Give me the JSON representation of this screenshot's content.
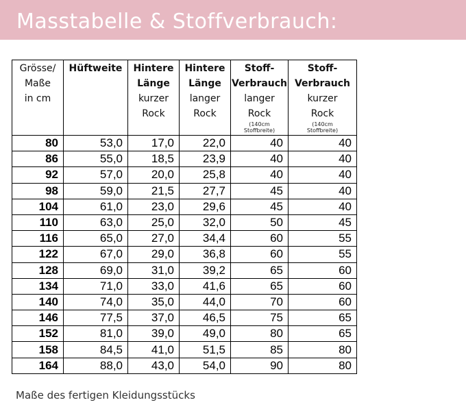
{
  "header": {
    "title": "Masstabelle & Stoffverbrauch:"
  },
  "table": {
    "columns": [
      {
        "lines": [
          {
            "text": "Grösse/",
            "bold": false
          },
          {
            "text": "Maße",
            "bold": false
          },
          {
            "text": "in cm",
            "bold": false
          }
        ]
      },
      {
        "lines": [
          {
            "text": "Hüftweite",
            "bold": true
          }
        ]
      },
      {
        "lines": [
          {
            "text": "Hintere",
            "bold": true
          },
          {
            "text": "Länge",
            "bold": true
          },
          {
            "text": "kurzer",
            "bold": false
          },
          {
            "text": "Rock",
            "bold": false
          }
        ]
      },
      {
        "lines": [
          {
            "text": "Hintere",
            "bold": true
          },
          {
            "text": "Länge",
            "bold": true
          },
          {
            "text": "langer",
            "bold": false
          },
          {
            "text": "Rock",
            "bold": false
          }
        ]
      },
      {
        "lines": [
          {
            "text": "Stoff-",
            "bold": true
          },
          {
            "text": "Verbrauch",
            "bold": true
          },
          {
            "text": "langer",
            "bold": false
          },
          {
            "text": "Rock",
            "bold": false
          }
        ],
        "notes": [
          "(140cm",
          "Stoffbreite)"
        ]
      },
      {
        "lines": [
          {
            "text": "Stoff-",
            "bold": true
          },
          {
            "text": "Verbrauch",
            "bold": true
          },
          {
            "text": "kurzer",
            "bold": false
          },
          {
            "text": "Rock",
            "bold": false
          }
        ],
        "notes": [
          "(140cm",
          "Stoffbreite)"
        ]
      }
    ],
    "rows": [
      [
        "80",
        "53,0",
        "17,0",
        "22,0",
        "40",
        "40"
      ],
      [
        "86",
        "55,0",
        "18,5",
        "23,9",
        "40",
        "40"
      ],
      [
        "92",
        "57,0",
        "20,0",
        "25,8",
        "40",
        "40"
      ],
      [
        "98",
        "59,0",
        "21,5",
        "27,7",
        "45",
        "40"
      ],
      [
        "104",
        "61,0",
        "23,0",
        "29,6",
        "45",
        "40"
      ],
      [
        "110",
        "63,0",
        "25,0",
        "32,0",
        "50",
        "45"
      ],
      [
        "116",
        "65,0",
        "27,0",
        "34,4",
        "60",
        "55"
      ],
      [
        "122",
        "67,0",
        "29,0",
        "36,8",
        "60",
        "55"
      ],
      [
        "128",
        "69,0",
        "31,0",
        "39,2",
        "65",
        "60"
      ],
      [
        "134",
        "71,0",
        "33,0",
        "41,6",
        "65",
        "60"
      ],
      [
        "140",
        "74,0",
        "35,0",
        "44,0",
        "70",
        "60"
      ],
      [
        "146",
        "77,5",
        "37,0",
        "46,5",
        "75",
        "65"
      ],
      [
        "152",
        "81,0",
        "39,0",
        "49,0",
        "80",
        "65"
      ],
      [
        "158",
        "84,5",
        "41,0",
        "51,5",
        "85",
        "80"
      ],
      [
        "164",
        "88,0",
        "43,0",
        "54,0",
        "90",
        "80"
      ]
    ]
  },
  "caption": "Maße des fertigen Kleidungsstücks",
  "colors": {
    "banner": "#e7b9c2",
    "banner_text": "#ffffff"
  }
}
